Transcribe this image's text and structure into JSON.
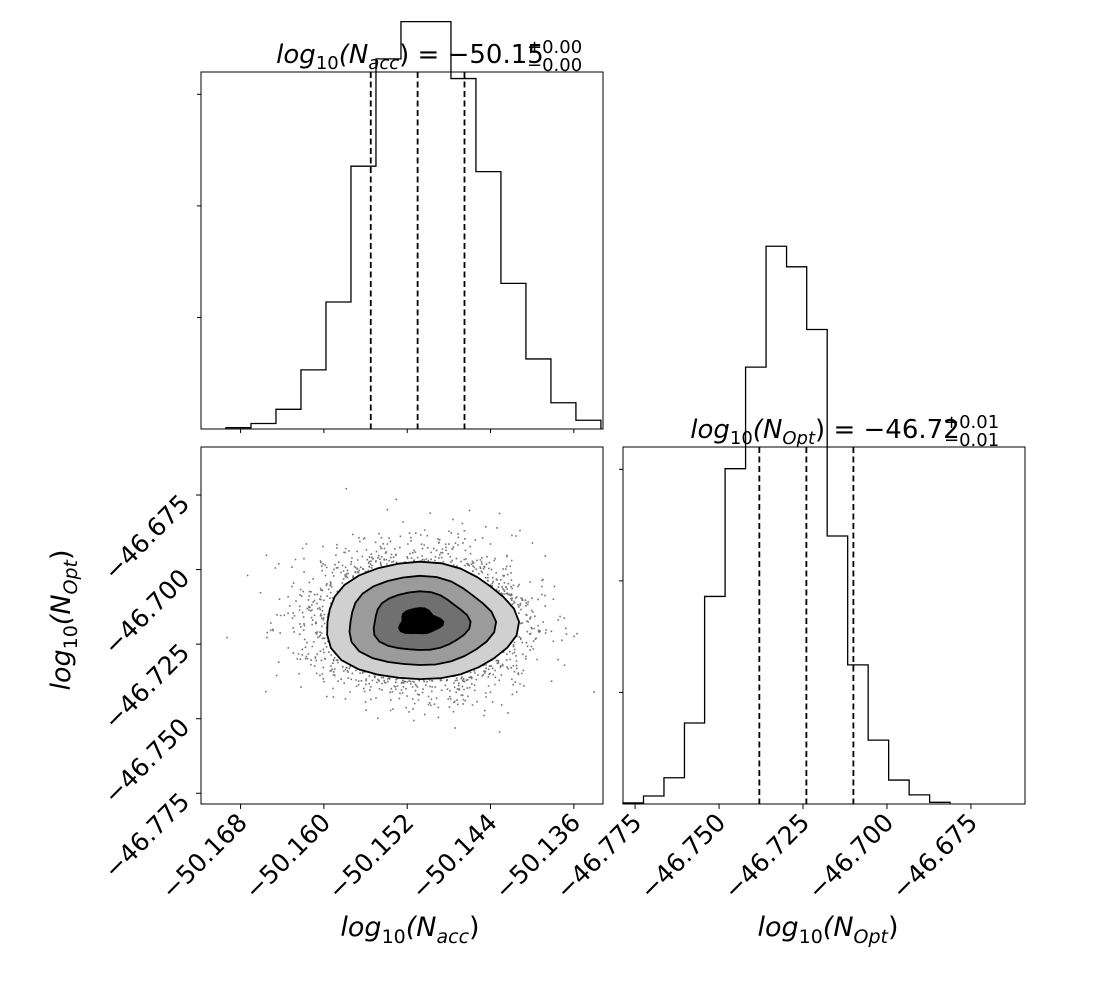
{
  "chart_data": [
    {
      "type": "histogram",
      "panel": "top-left",
      "title_parts": {
        "base": "log",
        "sub1": "10",
        "open": "(N",
        "sub2": "acc",
        "close": ") = −50.15",
        "sup": "+0.00",
        "inf": "−0.00"
      },
      "xlim": [
        -50.1718,
        -50.1332
      ],
      "ylim": [
        0,
        3260
      ],
      "bin_edges": [
        -50.1694,
        -50.167,
        -50.1646,
        -50.1622,
        -50.1598,
        -50.1574,
        -50.155,
        -50.1526,
        -50.1502,
        -50.1478,
        -50.1454,
        -50.143,
        -50.1406,
        -50.1382,
        -50.1358,
        -50.1334
      ],
      "bin_values": [
        12,
        50,
        180,
        540,
        1160,
        2400,
        3380,
        3720,
        3720,
        3200,
        2350,
        1330,
        640,
        240,
        80
      ],
      "quantile_lines": [
        -50.1555,
        -50.151,
        -50.1465
      ]
    },
    {
      "type": "scatter_contour",
      "panel": "bottom-left",
      "xlim": [
        -50.1718,
        -50.1332
      ],
      "ylim": [
        -46.7786,
        -46.6589
      ],
      "xticks": [
        -50.168,
        -50.16,
        -50.152,
        -50.144,
        -50.136
      ],
      "xtick_labels": [
        "−50.168",
        "−50.160",
        "−50.152",
        "−50.144",
        "−50.136"
      ],
      "yticks": [
        -46.675,
        -46.7,
        -46.725,
        -46.75,
        -46.775
      ],
      "ytick_labels": [
        "−46.675",
        "−46.700",
        "−46.725",
        "−46.750",
        "−46.775"
      ],
      "center": [
        -50.1508,
        -46.7175
      ],
      "sigma": [
        0.0046,
        0.0107
      ],
      "contour_fills": [
        "#d0d0d0",
        "#9b9b9b",
        "#707070",
        "#000000"
      ],
      "xlabel_parts": {
        "base": "log",
        "sub1": "10",
        "open": "(N",
        "sub2": "acc",
        "close": ")"
      },
      "ylabel_parts": {
        "base": "log",
        "sub1": "10",
        "open": "(N",
        "sub2": "Opt",
        "close": ")"
      }
    },
    {
      "type": "histogram",
      "panel": "bottom-right",
      "title_parts": {
        "base": "log",
        "sub1": "10",
        "open": "(N",
        "sub2": "Opt",
        "close": ") = −46.72",
        "sup": "+0.01",
        "inf": "−0.01"
      },
      "xlim": [
        -46.7786,
        -46.6589
      ],
      "ylim": [
        0,
        3130
      ],
      "bin_edges": [
        -46.7786,
        -46.7725,
        -46.7664,
        -46.7603,
        -46.7543,
        -46.7482,
        -46.7421,
        -46.736,
        -46.7299,
        -46.7239,
        -46.7178,
        -46.7117,
        -46.7056,
        -46.6995,
        -46.6934,
        -46.6873,
        -46.6812
      ],
      "bin_values": [
        10,
        70,
        230,
        710,
        1820,
        2940,
        3830,
        4890,
        4710,
        4160,
        2350,
        1220,
        560,
        210,
        80,
        15
      ],
      "quantile_lines": [
        -46.738,
        -46.724,
        -46.71
      ],
      "xticks": [
        -46.775,
        -46.75,
        -46.725,
        -46.7,
        -46.675
      ],
      "xtick_labels": [
        "−46.775",
        "−46.750",
        "−46.725",
        "−46.700",
        "−46.675"
      ],
      "xlabel_parts": {
        "base": "log",
        "sub1": "10",
        "open": "(N",
        "sub2": "Opt",
        "close": ")"
      }
    }
  ]
}
